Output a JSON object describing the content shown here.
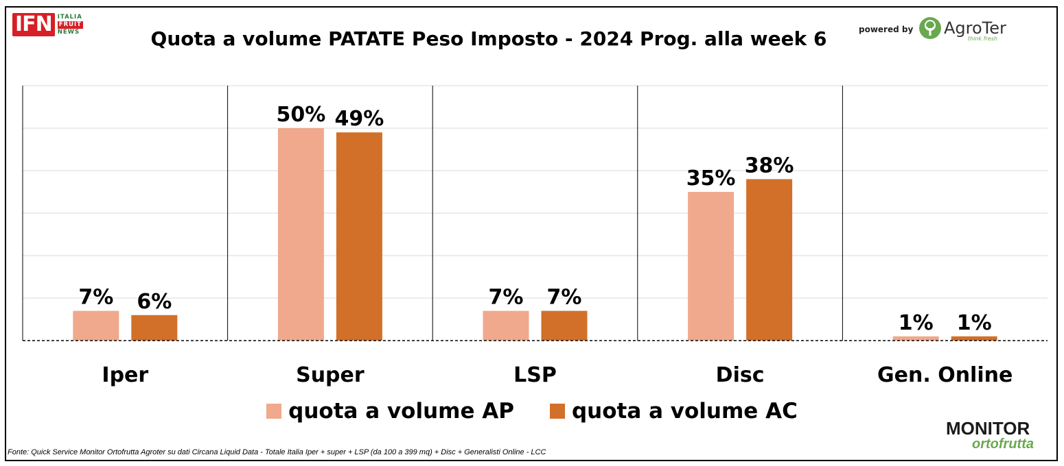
{
  "header": {
    "title": "Quota a volume PATATE Peso Imposto - 2024 Prog. alla week 6",
    "ifn_logo": "IFN",
    "ifn_tagline": [
      "ITALIA",
      "FRUIT",
      "NEWS"
    ],
    "powered_by": "powered by",
    "agroter_name": "AgroTer",
    "agroter_sub": "think fresh"
  },
  "chart_data": {
    "type": "bar",
    "categories": [
      "Iper",
      "Super",
      "LSP",
      "Disc",
      "Gen. Online"
    ],
    "series": [
      {
        "name": "quota a volume AP",
        "values": [
          7,
          50,
          7,
          35,
          1
        ],
        "labels": [
          "7%",
          "50%",
          "7%",
          "35%",
          "1%"
        ],
        "color": "#f0a98c"
      },
      {
        "name": "quota a volume AC",
        "values": [
          6,
          49,
          7,
          38,
          1
        ],
        "labels": [
          "6%",
          "49%",
          "7%",
          "38%",
          "1%"
        ],
        "color": "#d2702a"
      }
    ],
    "ylim": [
      0,
      60
    ],
    "grid": true,
    "legend_position": "bottom"
  },
  "footer": {
    "source": "Fonte: Quick Service Monitor Ortofrutta Agroter su dati Circana Liquid Data - Totale Italia Iper + super + LSP (da 100 a 399 mq) + Disc + Generalisti Online - LCC",
    "monitor_logo_top": "MONITOR",
    "monitor_logo_bottom": "ortofrutta"
  },
  "colors": {
    "ap": "#f0a98c",
    "ac": "#d2702a",
    "grid": "#d9d9d9",
    "logo_red": "#d71f26",
    "logo_green": "#6aa84f"
  }
}
